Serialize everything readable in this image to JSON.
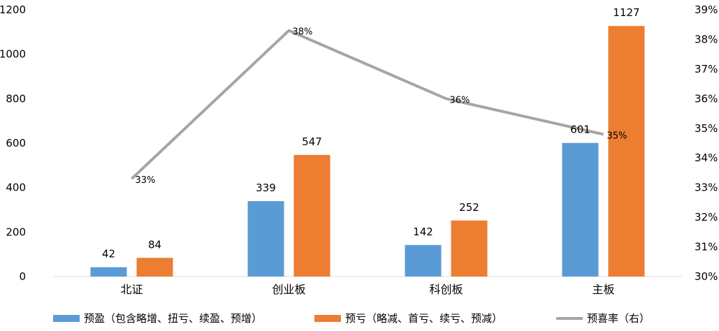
{
  "chart_data": {
    "type": "bar",
    "categories": [
      "北证",
      "创业板",
      "科创板",
      "主板"
    ],
    "series": [
      {
        "name": "预盈（包含略增、扭亏、续盈、预增）",
        "type": "bar",
        "axis": "left",
        "color": "#5B9BD5",
        "values": [
          42,
          339,
          142,
          601
        ]
      },
      {
        "name": "预亏（略减、首亏、续亏、预减）",
        "type": "bar",
        "axis": "left",
        "color": "#ED7D31",
        "values": [
          84,
          547,
          252,
          1127
        ]
      },
      {
        "name": "预喜率（右）",
        "type": "line",
        "axis": "right",
        "color": "#A5A5A5",
        "values": [
          33.3,
          38.3,
          36.0,
          34.8
        ],
        "labels": [
          "33%",
          "38%",
          "36%",
          "35%"
        ]
      }
    ],
    "bar_labels": [
      [
        "42",
        "339",
        "142",
        "601"
      ],
      [
        "84",
        "547",
        "252",
        "1127"
      ]
    ],
    "y_left": {
      "min": 0,
      "max": 1200,
      "ticks": [
        "0",
        "200",
        "400",
        "600",
        "800",
        "1000",
        "1200"
      ]
    },
    "y_right": {
      "min": 30,
      "max": 39,
      "ticks": [
        "30%",
        "31%",
        "32%",
        "33%",
        "34%",
        "35%",
        "36%",
        "37%",
        "38%",
        "39%"
      ]
    },
    "legend_position": "bottom",
    "grid": false
  }
}
